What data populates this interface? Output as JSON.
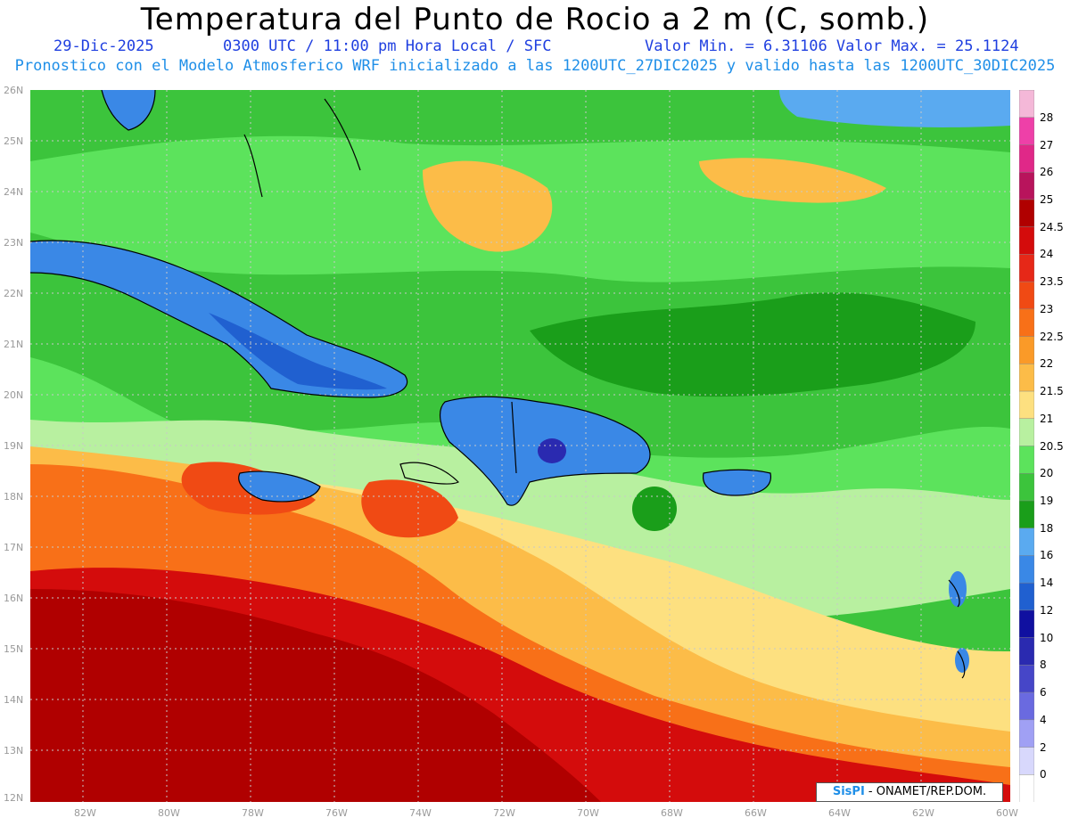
{
  "header": {
    "title": "Temperatura del Punto de Rocio a 2 m (C, somb.)",
    "date": "29-Dic-2025",
    "time": "0300 UTC / 11:00 pm Hora Local / SFC",
    "value_range": "Valor Min. = 6.31106  Valor Max. = 25.1124",
    "model_line": "Pronostico con el Modelo Atmosferico WRF inicializado a las 1200UTC_27DIC2025 y valido hasta las  1200UTC_30DIC2025"
  },
  "axes": {
    "lat_labels": [
      "26N",
      "25N",
      "24N",
      "23N",
      "22N",
      "21N",
      "20N",
      "19N",
      "18N",
      "17N",
      "16N",
      "15N",
      "14N",
      "13N",
      "12N"
    ],
    "lon_labels": [
      "82W",
      "80W",
      "78W",
      "76W",
      "74W",
      "72W",
      "70W",
      "68W",
      "66W",
      "64W",
      "62W",
      "60W"
    ]
  },
  "colorbar": {
    "levels": [
      "28",
      "27",
      "26",
      "25",
      "24.5",
      "24",
      "23.5",
      "23",
      "22.5",
      "22",
      "21.5",
      "21",
      "20.5",
      "20",
      "19",
      "18",
      "16",
      "14",
      "12",
      "10",
      "8",
      "6",
      "4",
      "2",
      "0"
    ],
    "colors": [
      "#f4b8d8",
      "#ee40a8",
      "#e02888",
      "#b8145c",
      "#b00000",
      "#d40c0c",
      "#e62818",
      "#f04a14",
      "#f87018",
      "#fa9a28",
      "#fcbc48",
      "#fde080",
      "#b8f0a0",
      "#5ce35c",
      "#3cc43c",
      "#1a9e1a",
      "#5aaaf0",
      "#3a88e6",
      "#2060d0",
      "#1010a0",
      "#2a2ab0",
      "#4646c8",
      "#6a6ae0",
      "#a0a0f4",
      "#d8d8fc",
      "#ffffff"
    ]
  },
  "palette": {
    "ocean_green": "#3cc43c",
    "light_green": "#5ce35c",
    "pale_green": "#b8f0a0",
    "yellow": "#fde080",
    "orange": "#fcbc48",
    "dark_orange": "#f87018",
    "red": "#d40c0c",
    "dark_red": "#b00000",
    "blue": "#3a88e6",
    "light_blue": "#5aaaf0",
    "dark_blue": "#2060d0",
    "deep_blue": "#2a2ab0"
  },
  "credit": {
    "brand": "SisPI",
    "org": "- ONAMET/REP.DOM."
  }
}
